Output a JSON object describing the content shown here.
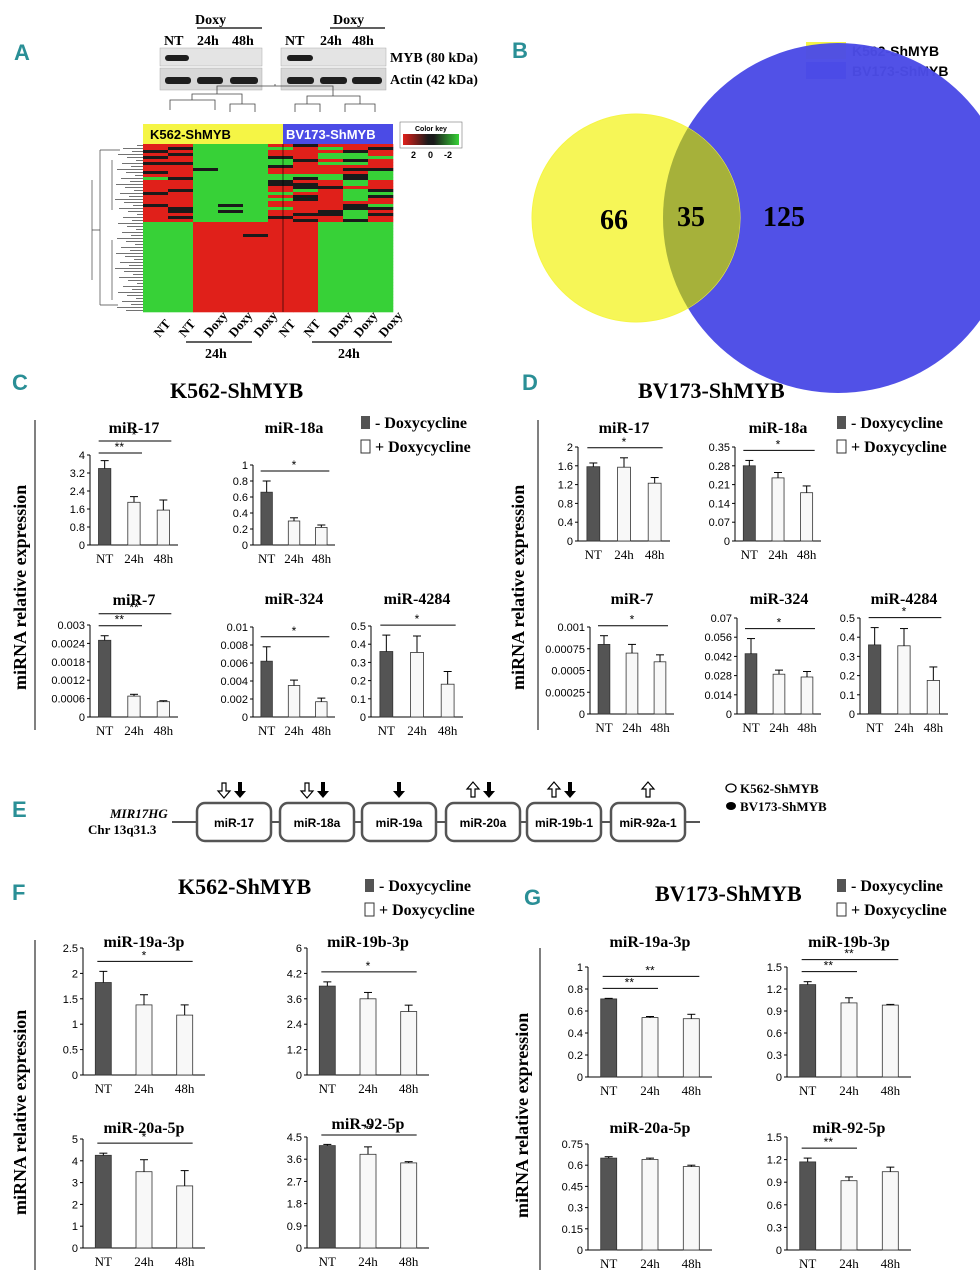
{
  "panels": {
    "A": "A",
    "B": "B",
    "C": "C",
    "D": "D",
    "E": "E",
    "F": "F",
    "G": "G"
  },
  "colors": {
    "panel_label": "#2a8f96",
    "bar_dark": "#545454",
    "bar_light": "#f8f8f8",
    "k562": "#f5f545",
    "bv173": "#4b4be6",
    "heat_red": "#e0201a",
    "heat_green": "#37d137",
    "heat_black": "#1a1a1a"
  },
  "panel_a": {
    "doxy": "Doxy",
    "lanes": [
      "NT",
      "24h",
      "48h"
    ],
    "blot_labels": [
      "MYB (80 kDa)",
      "Actin (42 kDa)"
    ],
    "group_labels": [
      "K562-ShMYB",
      "BV173-ShMYB"
    ],
    "color_key_title": "Color key",
    "color_key_ticks": [
      "2",
      "0",
      "-2"
    ],
    "column_labels": [
      "NT",
      "NT",
      "Doxy",
      "Doxy",
      "Doxy",
      "NT",
      "NT",
      "Doxy",
      "Doxy",
      "Doxy"
    ],
    "time_labels": [
      "24h",
      "24h"
    ]
  },
  "panel_b": {
    "legend": [
      "K562-ShMYB",
      "BV173-ShMYB"
    ],
    "counts": [
      "66",
      "35",
      "125"
    ]
  },
  "legend_labels": [
    "- Doxycycline",
    "+ Doxycycline"
  ],
  "y_axis_label": "miRNA relative expression",
  "panel_e": {
    "gene": "MIR17HG",
    "location": "Chr 13q31.3",
    "mirs": [
      "miR-17",
      "miR-18a",
      "miR-19a",
      "miR-20a",
      "miR-19b-1",
      "miR-92a-1"
    ],
    "legend": [
      "K562-ShMYB",
      "BV173-ShMYB"
    ]
  },
  "chart_data": [
    {
      "panel": "C",
      "cell": "K562-ShMYB",
      "type": "bar",
      "title": "miR-17",
      "categories": [
        "NT",
        "24h",
        "48h"
      ],
      "values": [
        3.4,
        1.9,
        1.55
      ],
      "errors": [
        0.35,
        0.25,
        0.45
      ],
      "yticks": [
        "0",
        "0.8",
        "1.6",
        "2.4",
        "3.2",
        "4"
      ],
      "ylim": [
        0,
        4
      ],
      "sig": [
        {
          "from": 0,
          "to": 1,
          "label": "**"
        },
        {
          "from": 0,
          "to": 2,
          "label": "*"
        }
      ]
    },
    {
      "panel": "C",
      "cell": "K562-ShMYB",
      "type": "bar",
      "title": "miR-18a",
      "categories": [
        "NT",
        "24h",
        "48h"
      ],
      "values": [
        0.66,
        0.3,
        0.22
      ],
      "errors": [
        0.14,
        0.04,
        0.03
      ],
      "yticks": [
        "0",
        "0.2",
        "0.4",
        "0.6",
        "0.8",
        "1"
      ],
      "ylim": [
        0,
        1
      ],
      "sig": [
        {
          "from": 0,
          "to": 2,
          "label": "*"
        }
      ]
    },
    {
      "panel": "C",
      "cell": "K562-ShMYB",
      "type": "bar",
      "title": "miR-7",
      "categories": [
        "NT",
        "24h",
        "48h"
      ],
      "values": [
        0.0025,
        0.00068,
        0.0005
      ],
      "errors": [
        0.00015,
        6e-05,
        3e-05
      ],
      "yticks": [
        "0",
        "0.0006",
        "0.0012",
        "0.0018",
        "0.0024",
        "0.003"
      ],
      "ylim": [
        0,
        0.003
      ],
      "sig": [
        {
          "from": 0,
          "to": 1,
          "label": "**"
        },
        {
          "from": 0,
          "to": 2,
          "label": "**"
        }
      ]
    },
    {
      "panel": "C",
      "cell": "K562-ShMYB",
      "type": "bar",
      "title": "miR-324",
      "categories": [
        "NT",
        "24h",
        "48h"
      ],
      "values": [
        0.0062,
        0.0035,
        0.0017
      ],
      "errors": [
        0.0016,
        0.0006,
        0.0004
      ],
      "yticks": [
        "0",
        "0.002",
        "0.004",
        "0.006",
        "0.008",
        "0.01"
      ],
      "ylim": [
        0,
        0.01
      ],
      "sig": [
        {
          "from": 0,
          "to": 2,
          "label": "*"
        }
      ]
    },
    {
      "panel": "C",
      "cell": "K562-ShMYB",
      "type": "bar",
      "title": "miR-4284",
      "categories": [
        "NT",
        "24h",
        "48h"
      ],
      "values": [
        0.36,
        0.355,
        0.18
      ],
      "errors": [
        0.09,
        0.09,
        0.07
      ],
      "yticks": [
        "0",
        "0.1",
        "0.2",
        "0.3",
        "0.4",
        "0.5"
      ],
      "ylim": [
        0,
        0.5
      ],
      "sig": [
        {
          "from": 0,
          "to": 2,
          "label": "*"
        }
      ]
    },
    {
      "panel": "D",
      "cell": "BV173-ShMYB",
      "type": "bar",
      "title": "miR-17",
      "categories": [
        "NT",
        "24h",
        "48h"
      ],
      "values": [
        1.58,
        1.57,
        1.23
      ],
      "errors": [
        0.08,
        0.2,
        0.12
      ],
      "yticks": [
        "0",
        "0.4",
        "0.8",
        "1.2",
        "1.6",
        "2"
      ],
      "ylim": [
        0,
        2
      ],
      "sig": [
        {
          "from": 0,
          "to": 2,
          "label": "*"
        }
      ]
    },
    {
      "panel": "D",
      "cell": "BV173-ShMYB",
      "type": "bar",
      "title": "miR-18a",
      "categories": [
        "NT",
        "24h",
        "48h"
      ],
      "values": [
        0.28,
        0.235,
        0.18
      ],
      "errors": [
        0.02,
        0.02,
        0.025
      ],
      "yticks": [
        "0",
        "0.07",
        "0.14",
        "0.21",
        "0.28",
        "0.35"
      ],
      "ylim": [
        0,
        0.35
      ],
      "sig": [
        {
          "from": 0,
          "to": 2,
          "label": "*"
        }
      ]
    },
    {
      "panel": "D",
      "cell": "BV173-ShMYB",
      "type": "bar",
      "title": "miR-7",
      "categories": [
        "NT",
        "24h",
        "48h"
      ],
      "values": [
        0.0008,
        0.0007,
        0.0006
      ],
      "errors": [
        0.0001,
        0.0001,
        8e-05
      ],
      "yticks": [
        "0",
        "0.00025",
        "0.0005",
        "0.00075",
        "0.001"
      ],
      "ylim": [
        0,
        0.001
      ],
      "sig": [
        {
          "from": 0,
          "to": 2,
          "label": "*"
        }
      ]
    },
    {
      "panel": "D",
      "cell": "BV173-ShMYB",
      "type": "bar",
      "title": "miR-324",
      "categories": [
        "NT",
        "24h",
        "48h"
      ],
      "values": [
        0.044,
        0.029,
        0.027
      ],
      "errors": [
        0.011,
        0.003,
        0.004
      ],
      "yticks": [
        "0",
        "0.014",
        "0.028",
        "0.042",
        "0.056",
        "0.07"
      ],
      "ylim": [
        0,
        0.07
      ],
      "sig": [
        {
          "from": 0,
          "to": 2,
          "label": "*"
        }
      ]
    },
    {
      "panel": "D",
      "cell": "BV173-ShMYB",
      "type": "bar",
      "title": "miR-4284",
      "categories": [
        "NT",
        "24h",
        "48h"
      ],
      "values": [
        0.36,
        0.355,
        0.175
      ],
      "errors": [
        0.09,
        0.09,
        0.07
      ],
      "yticks": [
        "0",
        "0.1",
        "0.2",
        "0.3",
        "0.4",
        "0.5"
      ],
      "ylim": [
        0,
        0.5
      ],
      "sig": [
        {
          "from": 0,
          "to": 2,
          "label": "*"
        }
      ]
    },
    {
      "panel": "F",
      "cell": "K562-ShMYB",
      "type": "bar",
      "title": "miR-19a-3p",
      "categories": [
        "NT",
        "24h",
        "48h"
      ],
      "values": [
        1.82,
        1.38,
        1.18
      ],
      "errors": [
        0.22,
        0.2,
        0.2
      ],
      "yticks": [
        "0",
        "0.5",
        "1",
        "1.5",
        "2",
        "2.5"
      ],
      "ylim": [
        0,
        2.5
      ],
      "sig": [
        {
          "from": 0,
          "to": 2,
          "label": "*"
        }
      ]
    },
    {
      "panel": "F",
      "cell": "K562-ShMYB",
      "type": "bar",
      "title": "miR-19b-3p",
      "categories": [
        "NT",
        "24h",
        "48h"
      ],
      "values": [
        4.2,
        3.6,
        3.0
      ],
      "errors": [
        0.2,
        0.3,
        0.3
      ],
      "yticks": [
        "0",
        "1.2",
        "2.4",
        "3.6",
        "4.2",
        "6"
      ],
      "ylim": [
        0,
        6
      ],
      "sig": [
        {
          "from": 0,
          "to": 2,
          "label": "*"
        }
      ]
    },
    {
      "panel": "F",
      "cell": "K562-ShMYB",
      "type": "bar",
      "title": "miR-20a-5p",
      "categories": [
        "NT",
        "24h",
        "48h"
      ],
      "values": [
        4.25,
        3.5,
        2.85
      ],
      "errors": [
        0.1,
        0.55,
        0.7
      ],
      "yticks": [
        "0",
        "1",
        "2",
        "3",
        "4",
        "5"
      ],
      "ylim": [
        0,
        5
      ],
      "sig": [
        {
          "from": 0,
          "to": 2,
          "label": "*"
        }
      ]
    },
    {
      "panel": "F",
      "cell": "K562-ShMYB",
      "type": "bar",
      "title": "miR-92-5p",
      "categories": [
        "NT",
        "24h",
        "48h"
      ],
      "values": [
        4.15,
        3.8,
        3.45
      ],
      "errors": [
        0.05,
        0.3,
        0.05
      ],
      "yticks": [
        "0",
        "0.9",
        "1.8",
        "2.7",
        "3.6",
        "4.5"
      ],
      "ylim": [
        0,
        4.5
      ],
      "sig": [
        {
          "from": 0,
          "to": 2,
          "label": "**"
        }
      ]
    },
    {
      "panel": "G",
      "cell": "BV173-ShMYB",
      "type": "bar",
      "title": "miR-19a-3p",
      "categories": [
        "NT",
        "24h",
        "48h"
      ],
      "values": [
        0.71,
        0.54,
        0.53
      ],
      "errors": [
        0.005,
        0.01,
        0.04
      ],
      "yticks": [
        "0",
        "0.2",
        "0.4",
        "0.6",
        "0.8",
        "1"
      ],
      "ylim": [
        0,
        1
      ],
      "sig": [
        {
          "from": 0,
          "to": 1,
          "label": "**"
        },
        {
          "from": 0,
          "to": 2,
          "label": "**"
        }
      ]
    },
    {
      "panel": "G",
      "cell": "BV173-ShMYB",
      "type": "bar",
      "title": "miR-19b-3p",
      "categories": [
        "NT",
        "24h",
        "48h"
      ],
      "values": [
        1.26,
        1.01,
        0.98
      ],
      "errors": [
        0.04,
        0.07,
        0.01
      ],
      "yticks": [
        "0",
        "0.3",
        "0.6",
        "0.9",
        "1.2",
        "1.5"
      ],
      "ylim": [
        0,
        1.5
      ],
      "sig": [
        {
          "from": 0,
          "to": 1,
          "label": "**"
        },
        {
          "from": 0,
          "to": 2,
          "label": "**"
        }
      ]
    },
    {
      "panel": "G",
      "cell": "BV173-ShMYB",
      "type": "bar",
      "title": "miR-20a-5p",
      "categories": [
        "NT",
        "24h",
        "48h"
      ],
      "values": [
        0.65,
        0.64,
        0.59
      ],
      "errors": [
        0.01,
        0.01,
        0.01
      ],
      "yticks": [
        "0",
        "0.15",
        "0.3",
        "0.45",
        "0.6",
        "0.75"
      ],
      "ylim": [
        0,
        0.75
      ],
      "sig": []
    },
    {
      "panel": "G",
      "cell": "BV173-ShMYB",
      "type": "bar",
      "title": "miR-92-5p",
      "categories": [
        "NT",
        "24h",
        "48h"
      ],
      "values": [
        1.17,
        0.92,
        1.04
      ],
      "errors": [
        0.05,
        0.05,
        0.06
      ],
      "yticks": [
        "0",
        "0.3",
        "0.6",
        "0.9",
        "1.2",
        "1.5"
      ],
      "ylim": [
        0,
        1.5
      ],
      "sig": [
        {
          "from": 0,
          "to": 1,
          "label": "**"
        }
      ]
    }
  ]
}
